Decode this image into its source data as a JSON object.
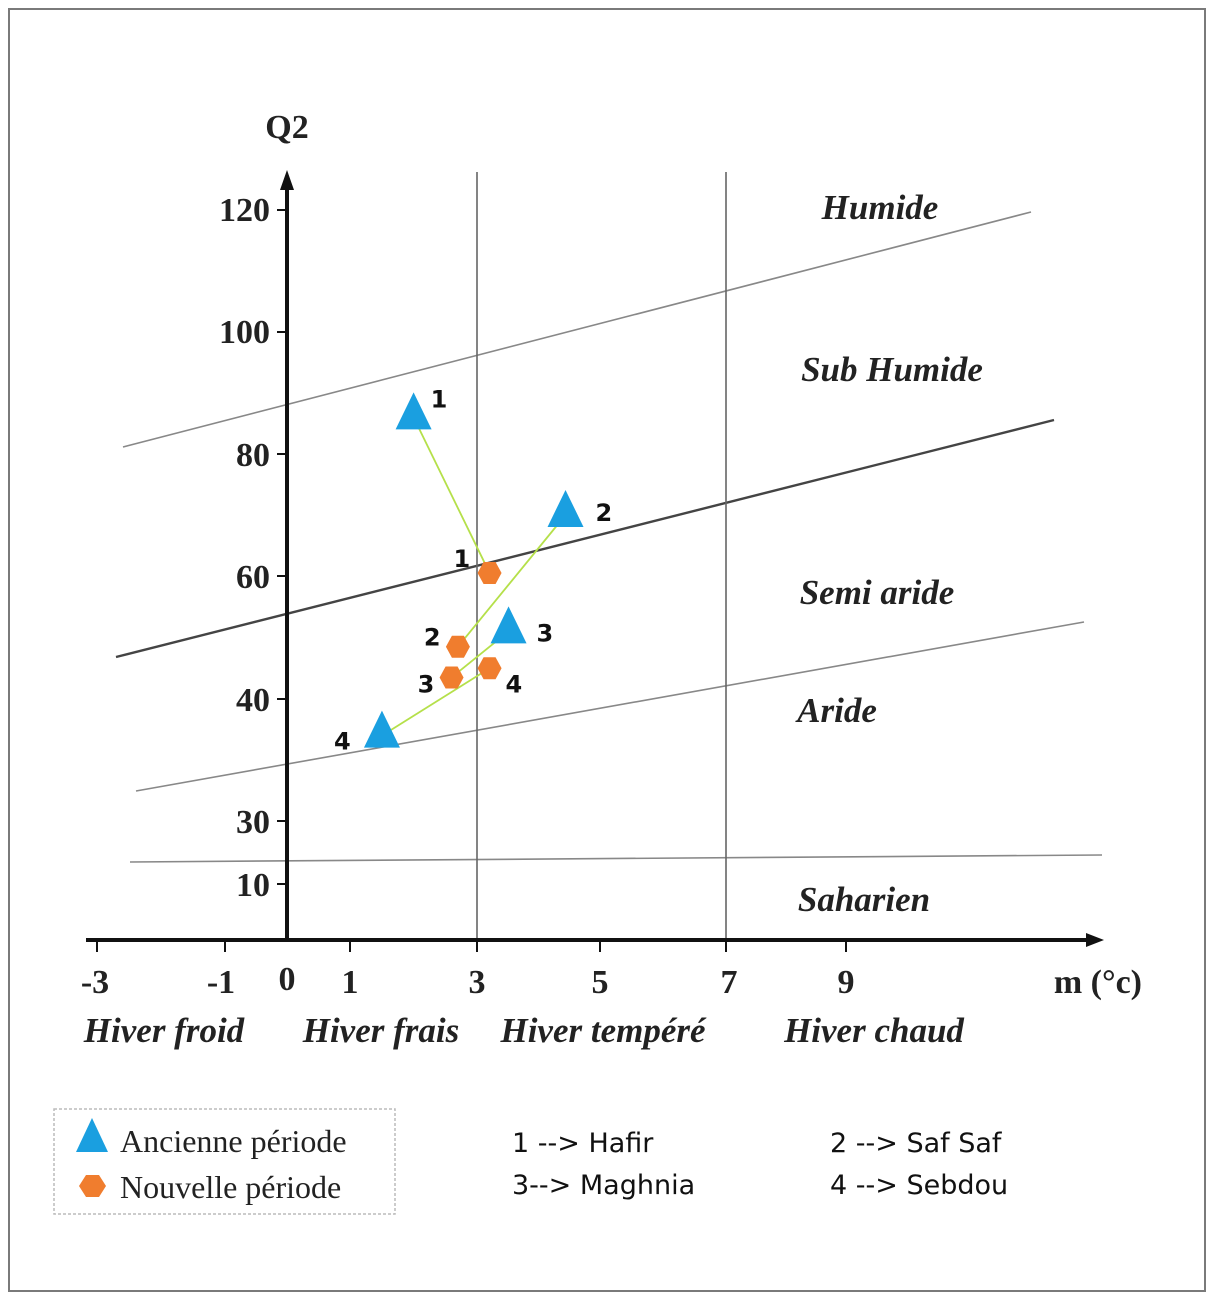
{
  "chart_data": {
    "type": "scatter",
    "xlabel": "m (°c)",
    "ylabel": "Q2",
    "x_ticks": [
      "-3",
      "-1",
      "0",
      "1",
      "3",
      "5",
      "7",
      "9"
    ],
    "y_ticks": [
      "120",
      "100",
      "80",
      "60",
      "40",
      "30",
      "10"
    ],
    "zones": [
      "Humide",
      "Sub Humide",
      "Semi aride",
      "Aride",
      "Saharien"
    ],
    "winter_types": [
      "Hiver froid",
      "Hiver frais",
      "Hiver tempéré",
      "Hiver chaud"
    ],
    "series": [
      {
        "name": "Ancienne période",
        "color": "#1a9fe0",
        "marker": "triangle",
        "points": [
          {
            "label": "1",
            "x": 2.0,
            "y": 86
          },
          {
            "label": "2",
            "x": 4.4,
            "y": 70
          },
          {
            "label": "3",
            "x": 3.5,
            "y": 51
          },
          {
            "label": "4",
            "x": 1.5,
            "y": 37
          }
        ]
      },
      {
        "name": "Nouvelle période",
        "color": "#f07d2e",
        "marker": "circle",
        "points": [
          {
            "label": "1",
            "x": 3.2,
            "y": 60.5
          },
          {
            "label": "2",
            "x": 2.7,
            "y": 48.5
          },
          {
            "label": "3",
            "x": 2.6,
            "y": 43.5
          },
          {
            "label": "4",
            "x": 3.2,
            "y": 45
          }
        ]
      }
    ],
    "stations": [
      {
        "key": "1 --> Hafir"
      },
      {
        "key": "2 --> Saf Saf"
      },
      {
        "key": "3--> Maghnia"
      },
      {
        "key": "4 --> Sebdou"
      }
    ],
    "legend_position": "bottom-left",
    "grid": false
  }
}
